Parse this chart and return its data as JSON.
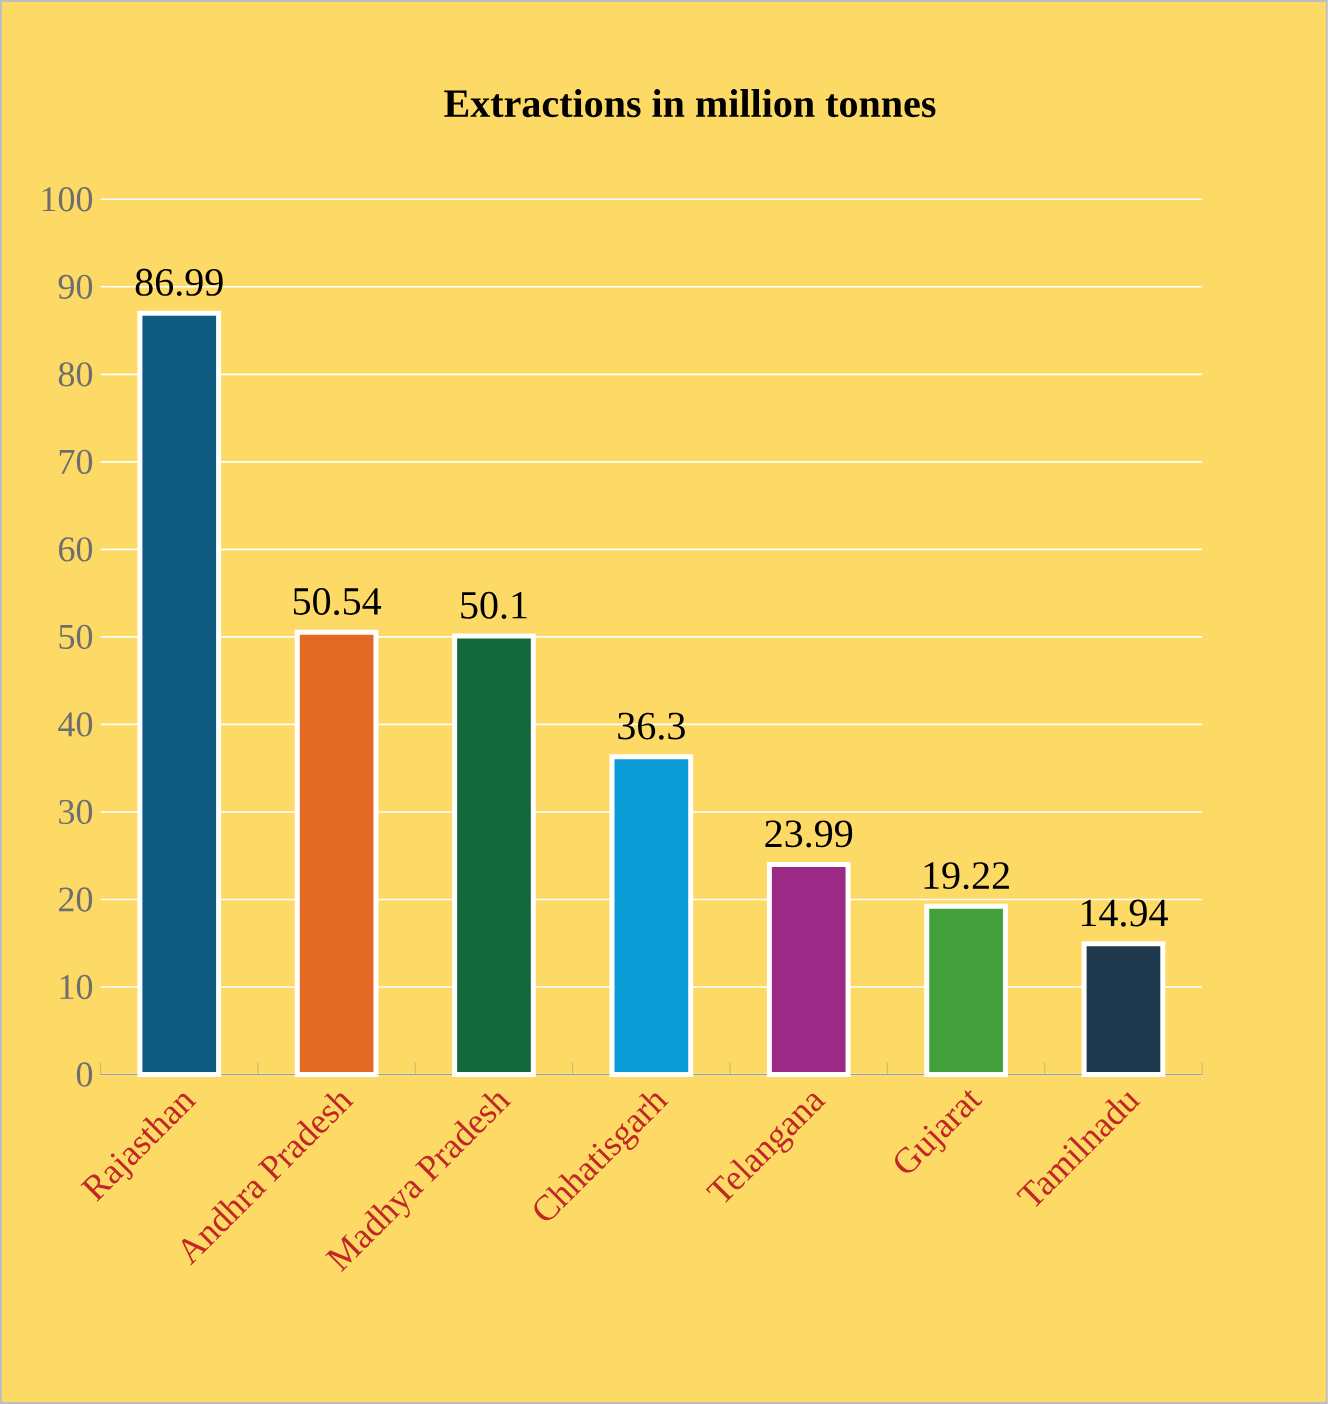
{
  "chart_data": {
    "type": "bar",
    "title": "Extractions in million tonnes",
    "categories": [
      "Rajasthan",
      "Andhra Pradesh",
      "Madhya Pradesh",
      "Chhatisgarh",
      "Telangana",
      "Gujarat",
      "Tamilnadu"
    ],
    "values": [
      86.99,
      50.54,
      50.1,
      36.3,
      23.99,
      19.22,
      14.94
    ],
    "colors": [
      "#0e5a7e",
      "#e36a25",
      "#13693b",
      "#0b9bd5",
      "#9b2a87",
      "#43a03d",
      "#1f3a4f"
    ],
    "ylim": [
      0,
      100
    ],
    "yticks": [
      0,
      10,
      20,
      30,
      40,
      50,
      60,
      70,
      80,
      90,
      100
    ],
    "grid": "y",
    "data_labels": true
  }
}
